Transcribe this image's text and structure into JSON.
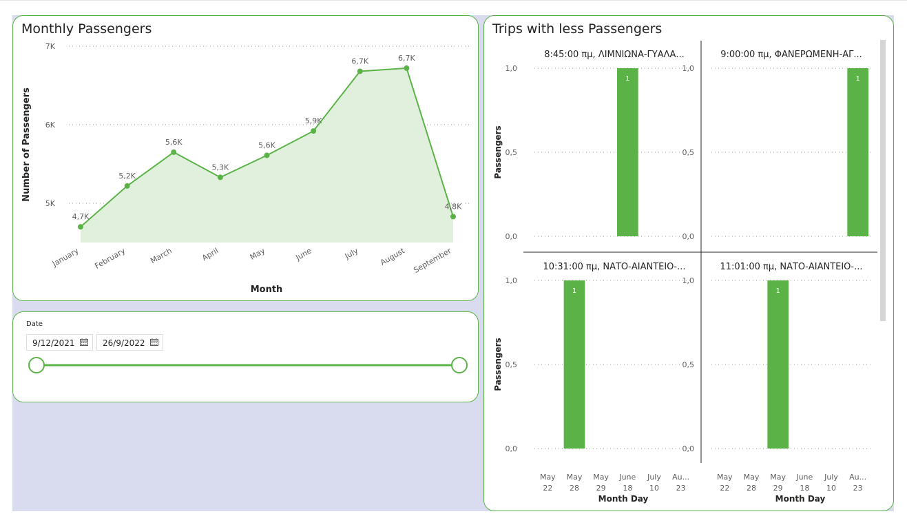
{
  "monthly": {
    "title": "Monthly Passengers",
    "chart_data": {
      "type": "area",
      "title": "Monthly Passengers",
      "xlabel": "Month",
      "ylabel": "Number of Passengers",
      "categories": [
        "January",
        "February",
        "March",
        "April",
        "May",
        "June",
        "July",
        "August",
        "September"
      ],
      "values": [
        4700,
        5220,
        5650,
        5330,
        5610,
        5920,
        6680,
        6720,
        4830
      ],
      "data_labels": [
        "4,7K",
        "5,2K",
        "5,6K",
        "5,3K",
        "5,6K",
        "5,9K",
        "6,7K",
        "6,7K",
        "4,8K"
      ],
      "y_ticks": [
        5000,
        6000,
        7000
      ],
      "y_tick_labels": [
        "5K",
        "6K",
        "7K"
      ],
      "ylim": [
        4500,
        7000
      ],
      "grid": true,
      "color": "#5bb348",
      "fill_color": "#e1f0dc"
    }
  },
  "date_slicer": {
    "label": "Date",
    "start": "9/12/2021",
    "end": "26/9/2022",
    "range": [
      0,
      1
    ]
  },
  "trips": {
    "title": "Trips with less Passengers",
    "xlabel": "Month Day",
    "ylabel": "Passengers",
    "x_labels": [
      {
        "top": "May",
        "bottom": "22"
      },
      {
        "top": "May",
        "bottom": "28"
      },
      {
        "top": "May",
        "bottom": "29"
      },
      {
        "top": "June",
        "bottom": "18"
      },
      {
        "top": "July",
        "bottom": "10"
      },
      {
        "top": "Au...",
        "bottom": "23"
      }
    ],
    "y_tick_labels": [
      "0,0",
      "0,5",
      "1,0"
    ],
    "chart_data": [
      {
        "type": "bar",
        "title": "8:45:00 πμ, ΛΙΜΝΙΩΝΑ-ΓΥΑΛΑ...",
        "bar_index": 3,
        "value": 1,
        "label": "1",
        "ylabel": "Passengers",
        "ylim": [
          0,
          1
        ]
      },
      {
        "type": "bar",
        "title": "9:00:00 πμ, ΦΑΝΕΡΩΜΕΝΗ-ΑΓ...",
        "bar_index": 5,
        "value": 1,
        "label": "1",
        "ylim": [
          0,
          1
        ]
      },
      {
        "type": "bar",
        "title": "10:31:00 πμ, ΝΑΤΟ-ΑΙΑΝΤΕΙΟ-...",
        "bar_index": 1,
        "value": 1,
        "label": "1",
        "ylabel": "Passengers",
        "xlabel": "Month Day",
        "ylim": [
          0,
          1
        ]
      },
      {
        "type": "bar",
        "title": "11:01:00 πμ, ΝΑΤΟ-ΑΙΑΝΤΕΙΟ-...",
        "bar_index": 2,
        "value": 1,
        "label": "1",
        "xlabel": "Month Day",
        "ylim": [
          0,
          1
        ]
      }
    ],
    "color": "#5bb348"
  }
}
